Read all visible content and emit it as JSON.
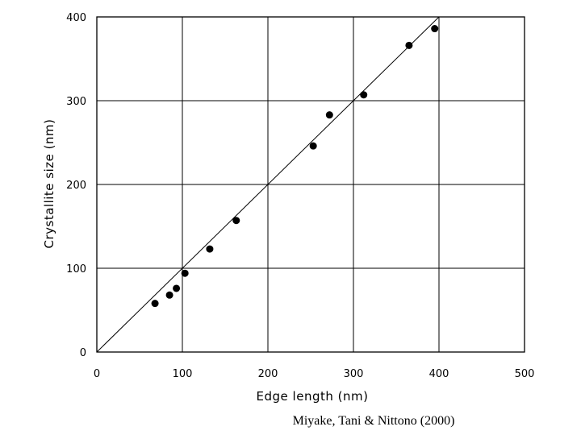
{
  "chart_data": {
    "type": "scatter",
    "title": "",
    "xlabel": "Edge length (nm)",
    "ylabel": "Crystallite size (nm)",
    "xlim": [
      0,
      500
    ],
    "ylim": [
      0,
      400
    ],
    "x_ticks": [
      0,
      100,
      200,
      300,
      400,
      500
    ],
    "y_ticks": [
      0,
      100,
      200,
      300,
      400
    ],
    "grid": true,
    "series": [
      {
        "x": [
          68,
          85,
          93,
          103,
          132,
          163,
          253,
          272,
          312,
          365,
          395
        ],
        "y": [
          58,
          68,
          76,
          94,
          123,
          157,
          246,
          283,
          307,
          366,
          386
        ]
      }
    ],
    "reference_line": {
      "x": [
        0,
        400
      ],
      "y": [
        0,
        400
      ]
    },
    "caption": "Miyake, Tani & Nittono (2000)"
  }
}
